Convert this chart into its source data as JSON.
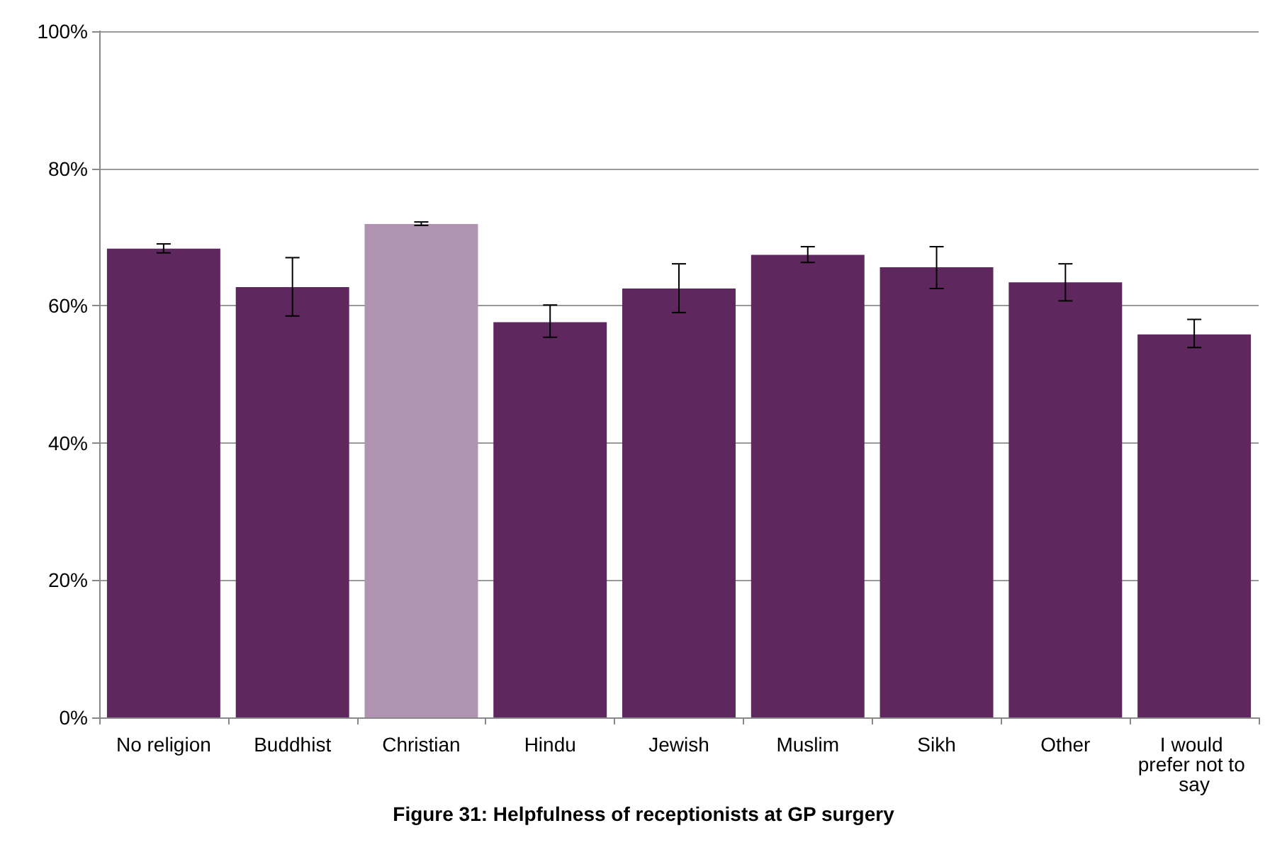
{
  "chart_data": {
    "type": "bar",
    "title": "Figure 31: Helpfulness of receptionists at GP surgery",
    "categories": [
      "No religion",
      "Buddhist",
      "Christian",
      "Hindu",
      "Jewish",
      "Muslim",
      "Sikh",
      "Other",
      "I would prefer not to say"
    ],
    "values": [
      68.3,
      62.7,
      71.9,
      57.6,
      62.5,
      67.4,
      65.6,
      63.4,
      55.8
    ],
    "colors": [
      "#5e285e",
      "#5e285e",
      "#b093b0",
      "#5e285e",
      "#5e285e",
      "#5e285e",
      "#5e285e",
      "#5e285e",
      "#5e285e"
    ],
    "errors": [
      [
        67.7,
        69.0
      ],
      [
        58.5,
        67.0
      ],
      [
        71.7,
        72.2
      ],
      [
        55.4,
        60.1
      ],
      [
        59.0,
        66.1
      ],
      [
        66.3,
        68.6
      ],
      [
        62.5,
        68.6
      ],
      [
        60.7,
        66.1
      ],
      [
        53.9,
        58.0
      ]
    ],
    "ylim": [
      0,
      100
    ],
    "yticks": [
      {
        "value": 0,
        "label": "0%"
      },
      {
        "value": 20,
        "label": "20%"
      },
      {
        "value": 40,
        "label": "40%"
      },
      {
        "value": 60,
        "label": "60%"
      },
      {
        "value": 80,
        "label": "80%"
      },
      {
        "value": 100,
        "label": "100%"
      }
    ],
    "grid": "y"
  }
}
